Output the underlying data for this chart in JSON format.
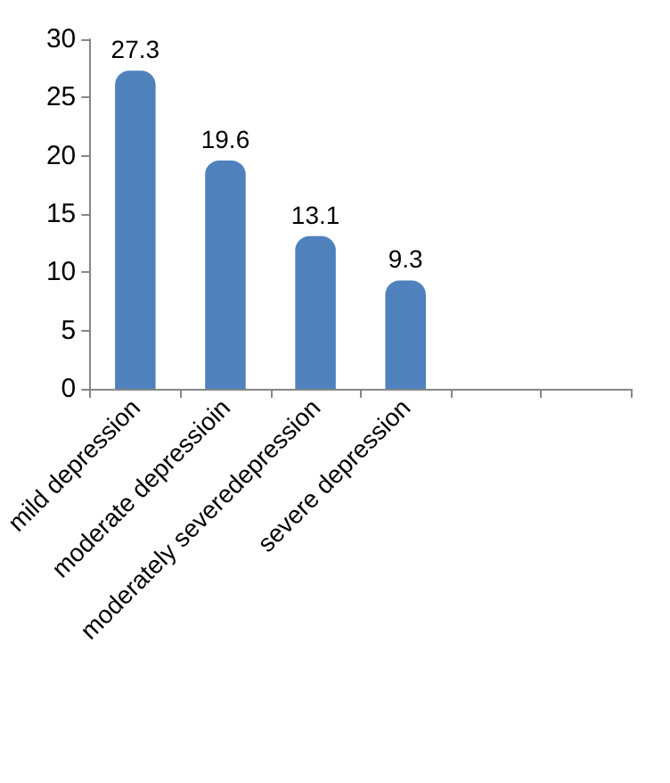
{
  "chart_data": {
    "type": "bar",
    "categories": [
      "mild depression",
      "moderate depressioin",
      "moderately severedepression",
      "severe depression",
      null,
      null
    ],
    "values": [
      27.3,
      19.6,
      13.1,
      9.3,
      null,
      null
    ],
    "color": "#4f81bd",
    "ylim": [
      0,
      30
    ],
    "yticks": [
      0,
      5,
      10,
      15,
      20,
      25,
      30
    ],
    "grid": false,
    "data_labels": true
  }
}
